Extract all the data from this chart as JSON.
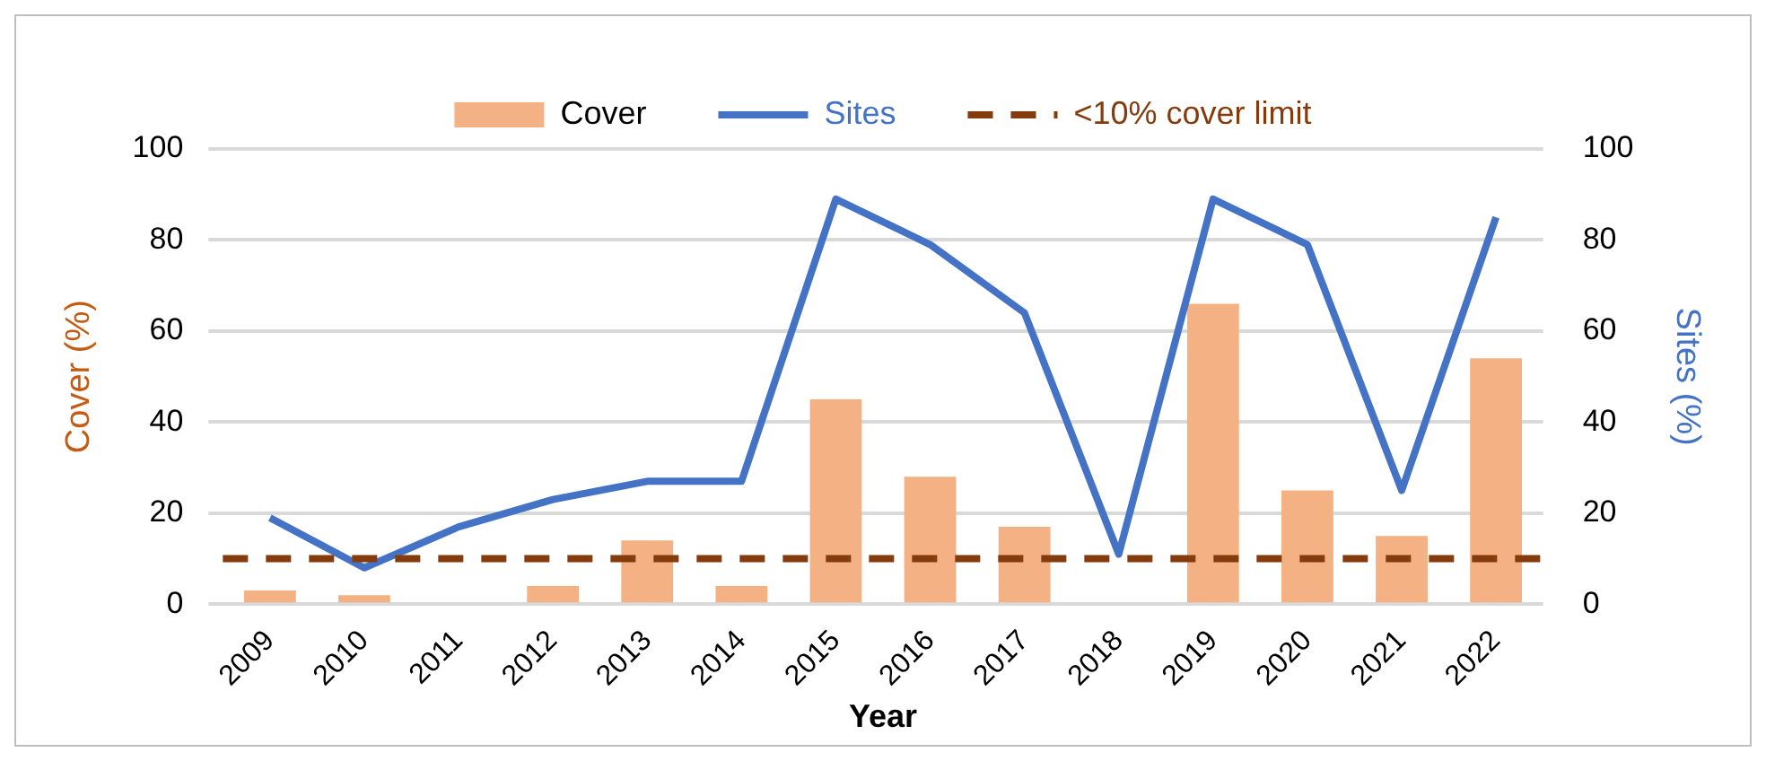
{
  "chart_data": {
    "type": "bar",
    "xlabel": "Year",
    "ylabel": "Cover (%)",
    "y2label": "Sites (%)",
    "categories": [
      "2009",
      "2010",
      "2011",
      "2012",
      "2013",
      "2014",
      "2015",
      "2016",
      "2017",
      "2018",
      "2019",
      "2020",
      "2021",
      "2022"
    ],
    "series": [
      {
        "name": "Cover",
        "color": "#f4b183",
        "values": [
          3,
          2,
          0,
          4,
          14,
          4,
          45,
          28,
          17,
          0,
          66,
          25,
          15,
          54
        ]
      },
      {
        "name": "Sites",
        "type": "line",
        "axis": "y2",
        "color": "#4472c4",
        "values": [
          19,
          8,
          17,
          23,
          27,
          27,
          89,
          79,
          64,
          11,
          89,
          79,
          25,
          85
        ]
      }
    ],
    "ref_lines": [
      {
        "axis": "y",
        "value": 10,
        "label": "<10% cover limit",
        "color": "#843c0c",
        "line_style": "dashed"
      }
    ],
    "ylim": [
      0,
      100
    ],
    "yticks": [
      0,
      20,
      40,
      60,
      80,
      100
    ],
    "y2lim": [
      0,
      100
    ],
    "y2ticks": [
      0,
      20,
      40,
      60,
      80,
      100
    ],
    "grid": "y",
    "legend": "top",
    "marker": "none"
  }
}
